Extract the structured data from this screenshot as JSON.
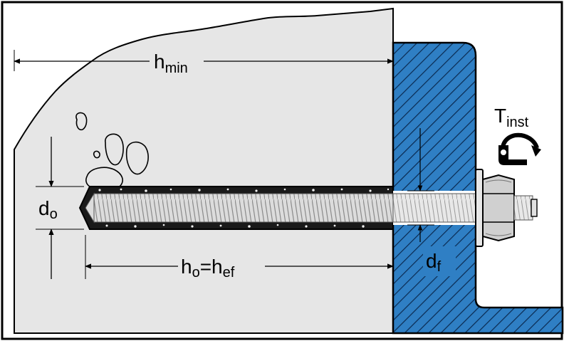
{
  "labels": {
    "h_min": {
      "main": "h",
      "sub": "min"
    },
    "d_o": {
      "main": "d",
      "sub": "o"
    },
    "h_o_h_ef": {
      "main1": "h",
      "sub1": "o",
      "eq": "=h",
      "sub2": "ef"
    },
    "d_f": {
      "main": "d",
      "sub": "f"
    },
    "T_inst": {
      "main": "T",
      "sub": "inst"
    }
  },
  "colors": {
    "concrete": "#e6e6e6",
    "plate": "#2f7fc4",
    "bolt": "#d8d8d8",
    "outline": "#000000"
  }
}
